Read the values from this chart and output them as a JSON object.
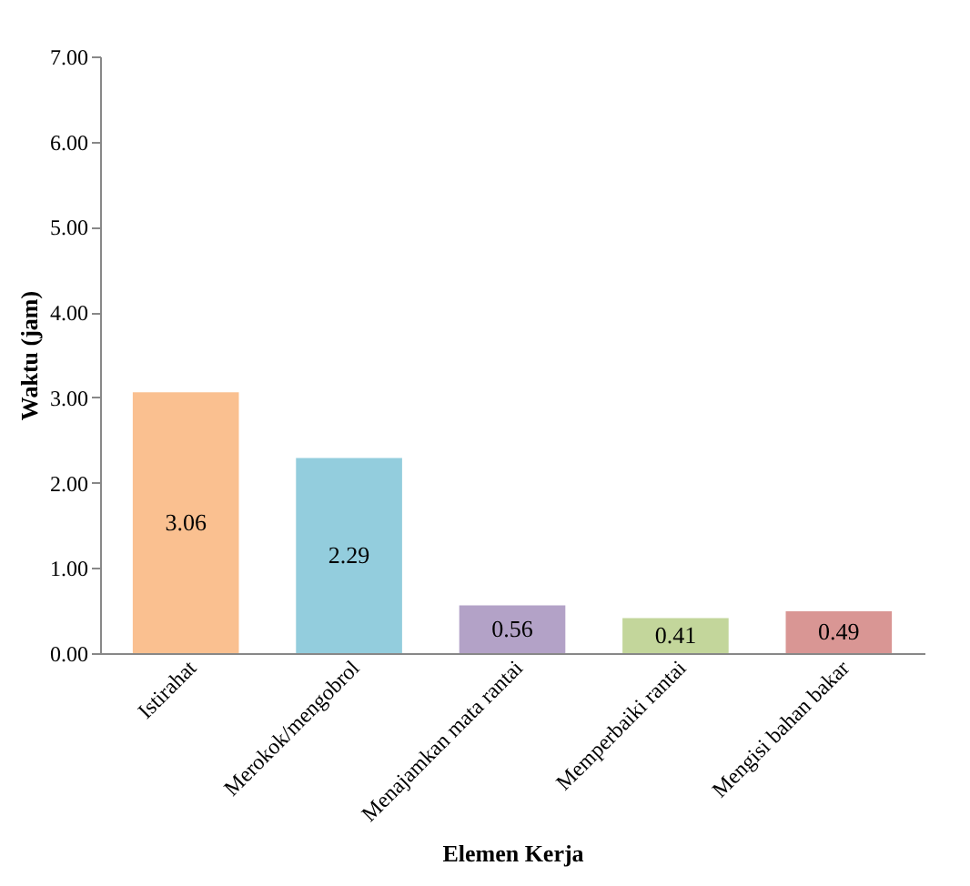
{
  "chart_data": {
    "type": "bar",
    "categories": [
      "Istirahat",
      "Merokok/mengobrol",
      "Menajamkan mata rantai",
      "Memperbaiki rantai",
      "Mengisi bahan bakar"
    ],
    "values": [
      3.06,
      2.29,
      0.56,
      0.41,
      0.49
    ],
    "colors": [
      "#fac090",
      "#93cddd",
      "#b3a2c7",
      "#c3d69b",
      "#d99694"
    ],
    "xlabel": "Elemen Kerja",
    "ylabel": "Waktu (jam)",
    "ylim": [
      0,
      7
    ],
    "yticks": [
      {
        "value": 0,
        "label": "0.00"
      },
      {
        "value": 1,
        "label": "1.00"
      },
      {
        "value": 2,
        "label": "2.00"
      },
      {
        "value": 3,
        "label": "3.00"
      },
      {
        "value": 4,
        "label": "4.00"
      },
      {
        "value": 5,
        "label": "5.00"
      },
      {
        "value": 6,
        "label": "6.00"
      },
      {
        "value": 7,
        "label": "7.00"
      }
    ],
    "data_labels": true,
    "grid": false
  }
}
